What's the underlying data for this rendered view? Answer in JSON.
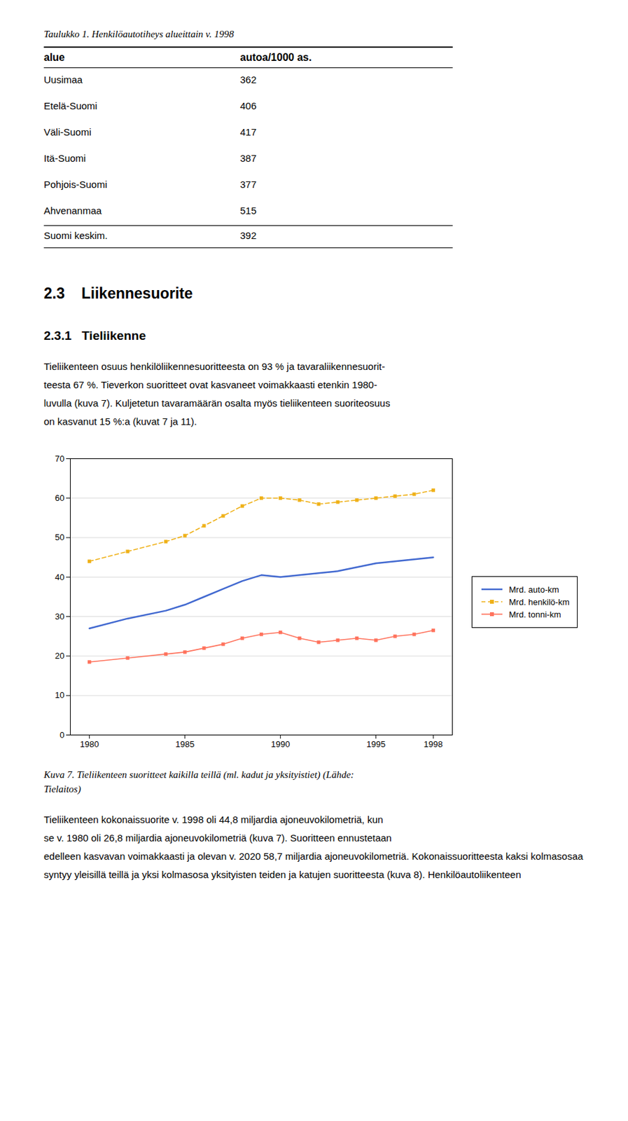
{
  "table": {
    "title": "Taulukko 1. Henkilöautotiheys alueittain v. 1998",
    "columns": [
      "alue",
      "autoa/1000 as."
    ],
    "rows": [
      [
        "Uusimaa",
        "362"
      ],
      [
        "Etelä-Suomi",
        "406"
      ],
      [
        "Väli-Suomi",
        "417"
      ],
      [
        "Itä-Suomi",
        "387"
      ],
      [
        "Pohjois-Suomi",
        "377"
      ],
      [
        "Ahvenanmaa",
        "515"
      ],
      [
        "Suomi keskim.",
        "392"
      ]
    ]
  },
  "section_title": "2.3    Liikennesuorite",
  "subsection_title": "2.3.1   Tieliikenne",
  "body_text1": "Tieliikenteen osuus henkilöliikennesuoritteesta on 93 % ja tavaraliikennesuorit-\nteesta 67 %. Tieverkon suoritteet ovat kasvaneet voimakkaasti etenkin 1980-\nluvulla (kuva 7). Kuljetetun tavaramäärän osalta myös tieliikenteen suoriteosuus\non kasvanut 15 %:a (kuvat 7 ja 11).",
  "chart_data": {
    "type": "line",
    "caption": "Kuva 7. Tieliikenteen suoritteet kaikilla teillä (ml. kadut ja yksityistiet) (Lähde:\nTielaitos)",
    "x": [
      1980,
      1982,
      1984,
      1985,
      1986,
      1987,
      1988,
      1989,
      1990,
      1991,
      1992,
      1993,
      1994,
      1995,
      1996,
      1997,
      1998
    ],
    "series": [
      {
        "name": "Mrd. auto-km",
        "line_style": "solid",
        "values": [
          27.0,
          29.5,
          31.5,
          33.0,
          35.0,
          37.0,
          39.0,
          40.5,
          40.0,
          40.5,
          41.0,
          41.5,
          42.5,
          43.5,
          44.0,
          44.5,
          45.0
        ]
      },
      {
        "name": "Mrd. henkilö-km",
        "line_style": "dashed",
        "marker": "square",
        "values": [
          44.0,
          46.5,
          49.0,
          50.5,
          53.0,
          55.5,
          58.0,
          60.0,
          60.0,
          59.5,
          58.5,
          59.0,
          59.5,
          60.0,
          60.5,
          61.0,
          62.0
        ]
      },
      {
        "name": "Mrd. tonni-km",
        "line_style": "solid",
        "marker": "square",
        "values": [
          18.5,
          19.5,
          20.5,
          21.0,
          22.0,
          23.0,
          24.5,
          25.5,
          26.0,
          24.5,
          23.5,
          24.0,
          24.5,
          24.0,
          25.0,
          25.5,
          26.5
        ]
      }
    ],
    "xlim": [
      1979,
      1999
    ],
    "xticks": [
      1980,
      1985,
      1990,
      1995,
      1998
    ],
    "ylim": [
      0,
      70
    ],
    "yticks": [
      0,
      10,
      20,
      30,
      40,
      50,
      60,
      70
    ],
    "grid": true,
    "legend": "right"
  },
  "body_text2": "Tieliikenteen kokonaissuorite v. 1998 oli 44,8 miljardia ajoneuvokilometriä, kun\nse v. 1980 oli 26,8 miljardia ajoneuvokilometriä (kuva 7). Suoritteen ennustetaan\nedelleen kasvavan voimakkaasti ja olevan v. 2020 58,7 miljardia ajoneuvokilometriä. Kokonaissuoritteesta kaksi kolmasosaa syntyy yleisillä teillä ja yksi kolmasosa yksityisten teiden ja katujen suoritteesta (kuva 8). Henkilöautoliikenteen"
}
